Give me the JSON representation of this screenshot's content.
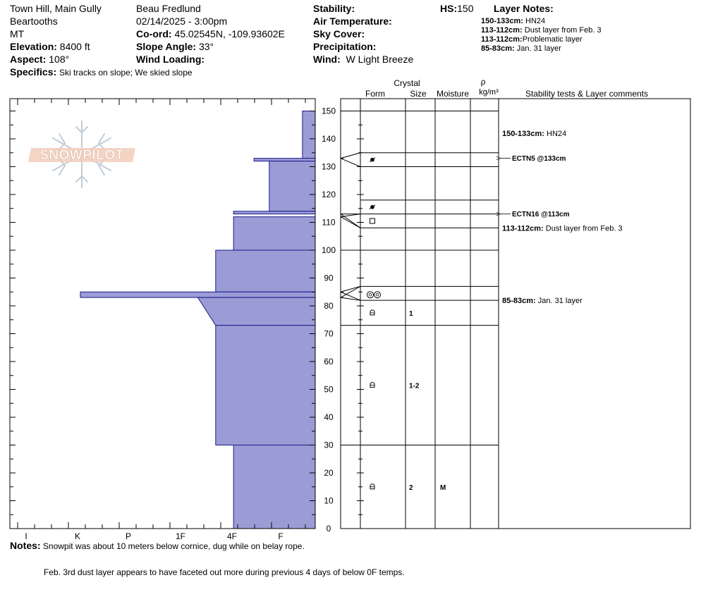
{
  "header": {
    "location": "Town Hill, Main Gully",
    "range": "Beartooths",
    "state": "MT",
    "elevation_label": "Elevation:",
    "elevation_value": "8400 ft",
    "aspect_label": "Aspect:",
    "aspect_value": "108°",
    "specifics_label": "Specifics:",
    "specifics_value": "Ski tracks on slope; We skied slope",
    "observer": "Beau  Fredlund",
    "datetime": "02/14/2025 - 3:00pm",
    "coord_label": "Co-ord:",
    "coord_value": "45.02545N, -109.93602E",
    "slope_label": "Slope Angle:",
    "slope_value": "33°",
    "wind_loading_label": "Wind Loading:",
    "stability_label": "Stability:",
    "air_temp_label": "Air Temperature:",
    "sky_label": "Sky Cover:",
    "precip_label": "Precipitation:",
    "wind_label": "Wind:",
    "wind_value": "W Light Breeze",
    "hs_label": "HS:",
    "hs_value": "150",
    "layer_notes_title": "Layer Notes:"
  },
  "layer_notes": [
    {
      "range": "150-133cm:",
      "text": " HN24"
    },
    {
      "range": "113-112cm:",
      "text": " Dust layer from Feb. 3"
    },
    {
      "range": "113-112cm:",
      "text": "Problematic layer"
    },
    {
      "range": "85-83cm:",
      "text": " Jan. 31 layer"
    }
  ],
  "logo_text": "SNOWPILOT",
  "columns": {
    "crystal": "Crystal",
    "form": "Form",
    "size": "Size",
    "moisture": "Moisture",
    "rho": "ρ",
    "density_unit": "kg/m³",
    "comments": "Stability tests & Layer comments"
  },
  "hardness_labels": [
    "I",
    "K",
    "P",
    "1F",
    "4F",
    "F"
  ],
  "notes_label": "Notes:",
  "notes_line1": "Snowpit was about 10 meters below cornice, dug while on belay rope.",
  "notes_line2": "Feb. 3rd dust layer appears to have faceted out more during previous 4 days of below 0F temps.",
  "chart_data": {
    "type": "snow-profile",
    "y_axis": {
      "min": 0,
      "max": 150,
      "step": 10
    },
    "hardness_scale_order": [
      "F",
      "4F",
      "1F",
      "P",
      "K",
      "I"
    ],
    "hardness_profile": [
      {
        "top": 150,
        "bottom": 133,
        "hardness_index": 0.25
      },
      {
        "top": 133,
        "bottom": 132,
        "hardness_index": 1.2
      },
      {
        "top": 132,
        "bottom": 114,
        "hardness_index": 0.9
      },
      {
        "top": 114,
        "bottom": 113,
        "hardness_index": 1.6
      },
      {
        "top": 113,
        "bottom": 112,
        "hardness_index": 0.0
      },
      {
        "top": 112,
        "bottom": 100,
        "hardness_index": 1.6
      },
      {
        "top": 100,
        "bottom": 85,
        "hardness_index": 1.95
      },
      {
        "top": 85,
        "bottom": 83,
        "hardness_index": 4.6
      },
      {
        "top": 83,
        "bottom": 73,
        "hardness_index_top": 2.3,
        "hardness_index_bottom": 1.95
      },
      {
        "top": 73,
        "bottom": 30,
        "hardness_index": 1.95
      },
      {
        "top": 30,
        "bottom": 0,
        "hardness_index": 1.6
      }
    ],
    "layer_boundaries": [
      150,
      135,
      130,
      118,
      113,
      108,
      100,
      87,
      82,
      73,
      30
    ],
    "link_lines": [
      {
        "axis": 133,
        "lines_at": [
          135,
          130
        ]
      },
      {
        "axis": 113,
        "lines_at": [
          113,
          108
        ]
      },
      {
        "axis": 112,
        "lines_at": [
          113,
          108
        ]
      },
      {
        "axis": 85,
        "lines_at": [
          87,
          82
        ]
      },
      {
        "axis": 83,
        "lines_at": [
          87,
          82
        ]
      }
    ],
    "crystals": [
      {
        "depth": 132.5,
        "form": "rime",
        "size": "",
        "moisture": ""
      },
      {
        "depth": 115.5,
        "form": "rime",
        "size": "",
        "moisture": ""
      },
      {
        "depth": 110.5,
        "form": "facet",
        "size": "",
        "moisture": ""
      },
      {
        "depth": 84,
        "form": "surface-hoar",
        "size": "",
        "moisture": ""
      },
      {
        "depth": 77.5,
        "form": "rounded",
        "size": "1",
        "moisture": ""
      },
      {
        "depth": 51.5,
        "form": "rounded",
        "size": "1-2",
        "moisture": ""
      },
      {
        "depth": 15,
        "form": "rounded",
        "size": "2",
        "moisture": "M"
      }
    ],
    "stability_tests": [
      {
        "depth": 133,
        "label": "ECTN5 @133cm"
      },
      {
        "depth": 113,
        "label": "ECTN16 @113cm"
      }
    ],
    "layer_comments": [
      {
        "depth": 142,
        "range": "150-133cm:",
        "text": " HN24"
      },
      {
        "depth": 108,
        "range": "113-112cm:",
        "text": " Dust layer from Feb. 3"
      },
      {
        "depth": 82,
        "range": "85-83cm:",
        "text": " Jan. 31 layer"
      }
    ]
  }
}
